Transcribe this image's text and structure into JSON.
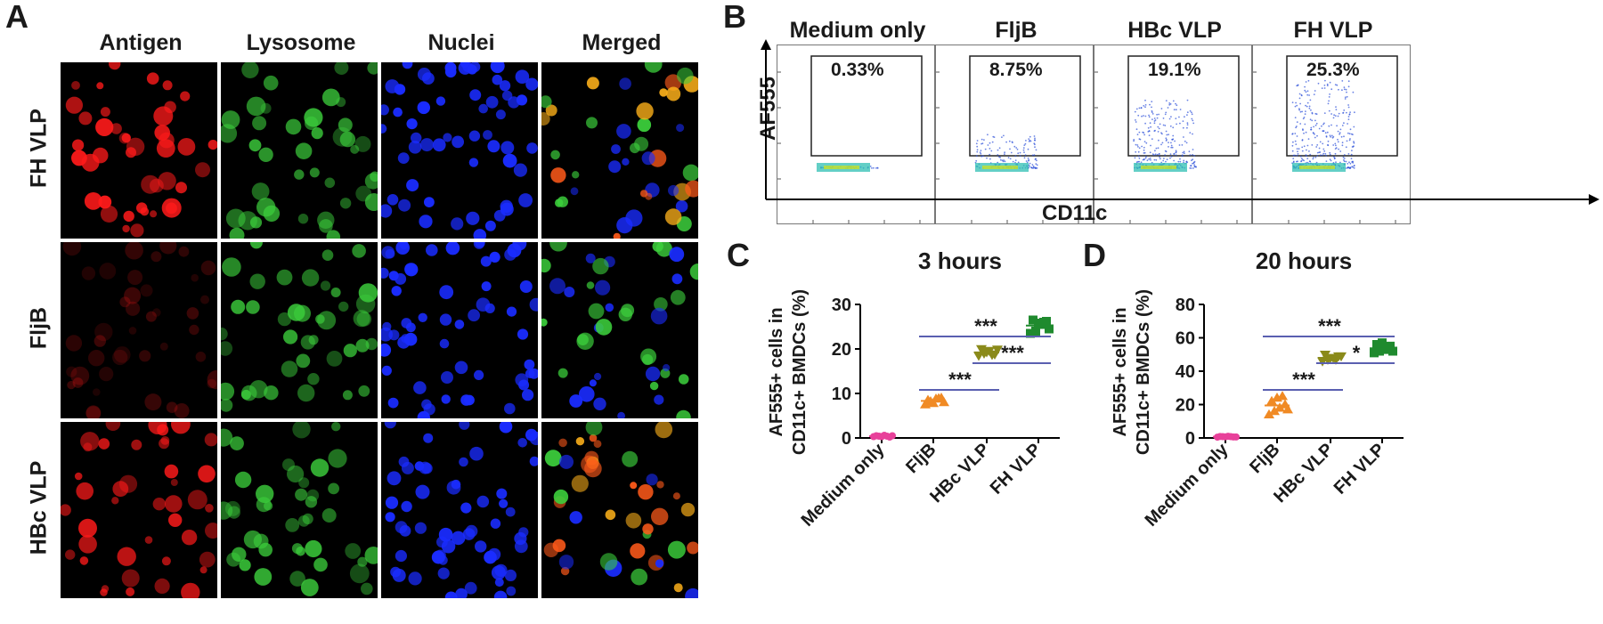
{
  "panels": {
    "A": {
      "letter": "A",
      "columns": [
        "Antigen",
        "Lysosome",
        "Nuclei",
        "Merged"
      ],
      "rows": [
        "FH VLP",
        "FljB",
        "HBc VLP"
      ]
    },
    "B": {
      "letter": "B",
      "groups": [
        {
          "name": "Medium only",
          "percent": "0.33%",
          "density": 0.02
        },
        {
          "name": "FljB",
          "percent": "8.75%",
          "density": 0.35
        },
        {
          "name": "HBc VLP",
          "percent": "19.1%",
          "density": 0.7
        },
        {
          "name": "FH VLP",
          "percent": "25.3%",
          "density": 0.9
        }
      ],
      "y_label": "AF555",
      "x_label": "CD11c"
    },
    "C": {
      "letter": "C"
    },
    "D": {
      "letter": "D"
    }
  },
  "chart_data": [
    {
      "type": "scatter",
      "panel": "C",
      "title": "3 hours",
      "ylabel": "AF555+ cells in CD11c+ BMDCs (%)",
      "ylabel_lines": [
        "AF555+ cells in",
        "CD11c+ BMDCs (%)"
      ],
      "categories": [
        "Medium only",
        "FljB",
        "HBc VLP",
        "FH VLP"
      ],
      "ylim": [
        0,
        30
      ],
      "yticks": [
        0,
        10,
        20,
        30
      ],
      "colors": [
        "#e8419a",
        "#f08a24",
        "#8a8a1a",
        "#1f8a2e"
      ],
      "markers": [
        "circle",
        "triangle-up",
        "triangle-down",
        "square"
      ],
      "values": [
        [
          0.3,
          0.4,
          0.6,
          0.2,
          0.5,
          0.3,
          0.4,
          0.5
        ],
        [
          7.5,
          8.2,
          8.8,
          9.0,
          8.5,
          7.8,
          8.9,
          8.0
        ],
        [
          18.5,
          19.0,
          19.6,
          18.8,
          20.0,
          19.3,
          18.7,
          19.9
        ],
        [
          23.5,
          24.0,
          25.5,
          26.2,
          26.5,
          25.8,
          26.0,
          24.5
        ]
      ],
      "significance": [
        {
          "from": 1,
          "to": 2,
          "label": "***"
        },
        {
          "from": 2,
          "to": 3,
          "label": "***"
        },
        {
          "from": 1,
          "to": 3,
          "label": "***"
        }
      ]
    },
    {
      "type": "scatter",
      "panel": "D",
      "title": "20 hours",
      "ylabel": "AF555+ cells in CD11c+ BMDCs (%)",
      "ylabel_lines": [
        "AF555+ cells in",
        "CD11c+ BMDCs (%)"
      ],
      "categories": [
        "Medium only",
        "FljB",
        "HBc VLP",
        "FH VLP"
      ],
      "ylim": [
        0,
        80
      ],
      "yticks": [
        0,
        20,
        40,
        60,
        80
      ],
      "colors": [
        "#e8419a",
        "#f08a24",
        "#8a8a1a",
        "#1f8a2e"
      ],
      "markers": [
        "circle",
        "triangle-up",
        "triangle-down",
        "square"
      ],
      "values": [
        [
          0.5,
          0.8,
          1.0,
          0.6,
          0.9,
          0.7,
          0.8,
          0.6
        ],
        [
          14,
          16,
          18,
          20,
          22,
          24,
          25,
          17
        ],
        [
          46,
          47,
          48,
          49,
          50,
          48,
          47,
          49
        ],
        [
          51,
          52,
          53,
          55,
          56,
          57,
          54,
          52
        ]
      ],
      "significance": [
        {
          "from": 1,
          "to": 2,
          "label": "***"
        },
        {
          "from": 2,
          "to": 3,
          "label": "*"
        },
        {
          "from": 1,
          "to": 3,
          "label": "***"
        }
      ]
    }
  ]
}
